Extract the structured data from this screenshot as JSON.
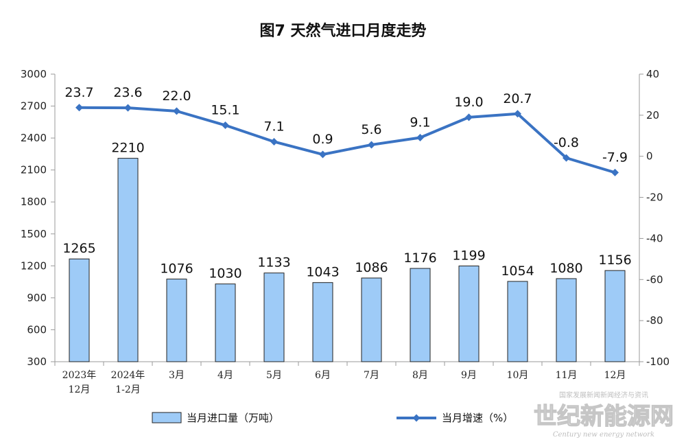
{
  "chart_data": {
    "type": "bar+line",
    "title": "图7  天然气进口月度走势",
    "categories": [
      [
        "2023年",
        "12月"
      ],
      [
        "2024年",
        "1-2月"
      ],
      [
        "3月"
      ],
      [
        "4月"
      ],
      [
        "5月"
      ],
      [
        "6月"
      ],
      [
        "7月"
      ],
      [
        "8月"
      ],
      [
        "9月"
      ],
      [
        "10月"
      ],
      [
        "11月"
      ],
      [
        "12月"
      ]
    ],
    "series": [
      {
        "name": "当月进口量（万吨）",
        "type": "bar",
        "axis": "left",
        "values": [
          1265,
          2210,
          1076,
          1030,
          1133,
          1043,
          1086,
          1176,
          1199,
          1054,
          1080,
          1156
        ],
        "labels": [
          "1265",
          "2210",
          "1076",
          "1030",
          "1133",
          "1043",
          "1086",
          "1176",
          "1199",
          "1054",
          "1080",
          "1156"
        ]
      },
      {
        "name": "当月增速（%）",
        "type": "line",
        "axis": "right",
        "values": [
          23.7,
          23.6,
          22.0,
          15.1,
          7.1,
          0.9,
          5.6,
          9.1,
          19.0,
          20.7,
          -0.8,
          -7.9
        ],
        "labels": [
          "23.7",
          "23.6",
          "22.0",
          "15.1",
          "7.1",
          "0.9",
          "5.6",
          "9.1",
          "19.0",
          "20.7",
          "-0.8",
          "-7.9"
        ]
      }
    ],
    "y_left": {
      "min": 300,
      "max": 3000,
      "ticks": [
        300,
        600,
        900,
        1200,
        1500,
        1800,
        2100,
        2400,
        2700,
        3000
      ]
    },
    "y_right": {
      "min": -100,
      "max": 40,
      "ticks": [
        -100,
        -80,
        -60,
        -40,
        -20,
        0,
        20,
        40
      ]
    },
    "grid": false,
    "legend_position": "bottom",
    "colors": {
      "bar_fill": "#9ecbf7",
      "bar_stroke": "#222222",
      "line": "#3a73c3",
      "axis": "#9a9a9a"
    }
  },
  "watermark": {
    "small": "国家发展新闻新闻经济与资讯",
    "big": "世纪新能源网",
    "sub": "Century new energy network"
  }
}
